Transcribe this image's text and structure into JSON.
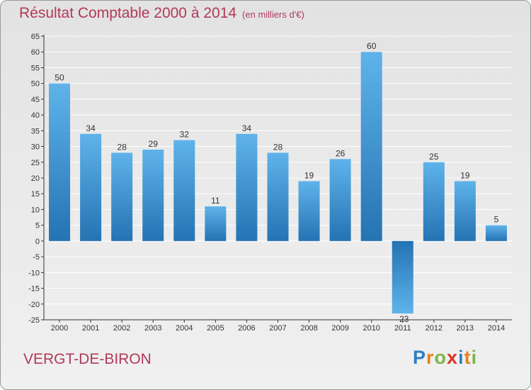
{
  "header": {
    "title": "Résultat Comptable 2000 à 2014",
    "subtitle": "(en milliers d'€)"
  },
  "footer": {
    "commune": "VERGT-DE-BIRON",
    "logo_text": "Proxiti",
    "logo_colors": [
      "#2e7fc4",
      "#e6821e",
      "#7ab648",
      "#d8362b",
      "#2e7fc4",
      "#e6821e",
      "#7ab648"
    ]
  },
  "colors": {
    "title": "#b3385a",
    "bar_light": "#5fb3ea",
    "bar_dark": "#2473b3",
    "grid": "#ffffff",
    "axis": "#333333"
  },
  "chart_data": {
    "type": "bar",
    "categories": [
      "2000",
      "2001",
      "2002",
      "2003",
      "2004",
      "2005",
      "2006",
      "2007",
      "2008",
      "2009",
      "2010",
      "2011",
      "2012",
      "2013",
      "2014"
    ],
    "values": [
      50,
      34,
      28,
      29,
      32,
      11,
      34,
      28,
      19,
      26,
      60,
      -23,
      25,
      19,
      5
    ],
    "data_labels": [
      "50",
      "34",
      "28",
      "29",
      "32",
      "11",
      "34",
      "28",
      "19",
      "26",
      "60",
      "-23",
      "25",
      "19",
      "5"
    ],
    "ylim": [
      -25,
      65
    ],
    "yticks": [
      -25,
      -20,
      -15,
      -10,
      -5,
      0,
      5,
      10,
      15,
      20,
      25,
      30,
      35,
      40,
      45,
      50,
      55,
      60,
      65
    ],
    "grid": true,
    "legend": "none"
  }
}
